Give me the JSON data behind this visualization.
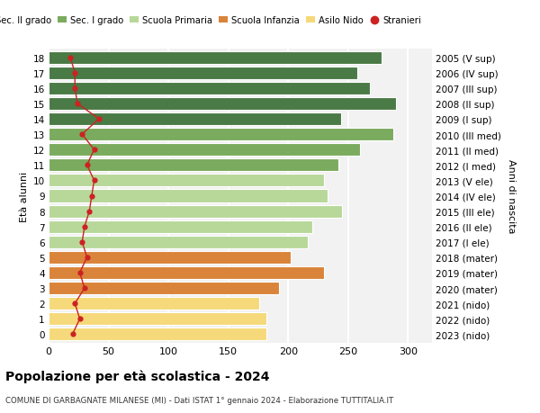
{
  "ages": [
    18,
    17,
    16,
    15,
    14,
    13,
    12,
    11,
    10,
    9,
    8,
    7,
    6,
    5,
    4,
    3,
    2,
    1,
    0
  ],
  "right_labels_by_age": {
    "18": "2005 (V sup)",
    "17": "2006 (IV sup)",
    "16": "2007 (III sup)",
    "15": "2008 (II sup)",
    "14": "2009 (I sup)",
    "13": "2010 (III med)",
    "12": "2011 (II med)",
    "11": "2012 (I med)",
    "10": "2013 (V ele)",
    "9": "2014 (IV ele)",
    "8": "2015 (III ele)",
    "7": "2016 (II ele)",
    "6": "2017 (I ele)",
    "5": "2018 (mater)",
    "4": "2019 (mater)",
    "3": "2020 (mater)",
    "2": "2021 (nido)",
    "1": "2022 (nido)",
    "0": "2023 (nido)"
  },
  "bar_values": [
    278,
    258,
    268,
    290,
    244,
    288,
    260,
    242,
    230,
    233,
    245,
    220,
    216,
    202,
    230,
    192,
    176,
    182,
    182
  ],
  "bar_colors": [
    "#4a7a45",
    "#4a7a45",
    "#4a7a45",
    "#4a7a45",
    "#4a7a45",
    "#7aab5e",
    "#7aab5e",
    "#7aab5e",
    "#b8d89a",
    "#b8d89a",
    "#b8d89a",
    "#b8d89a",
    "#b8d89a",
    "#d9843a",
    "#d9843a",
    "#d9843a",
    "#f5d97a",
    "#f5d97a",
    "#f5d97a"
  ],
  "stranieri_values": [
    18,
    22,
    22,
    24,
    42,
    28,
    38,
    32,
    38,
    36,
    34,
    30,
    28,
    32,
    26,
    30,
    22,
    26,
    20
  ],
  "legend_labels": [
    "Sec. II grado",
    "Sec. I grado",
    "Scuola Primaria",
    "Scuola Infanzia",
    "Asilo Nido",
    "Stranieri"
  ],
  "legend_colors": [
    "#4a7a45",
    "#7aab5e",
    "#b8d89a",
    "#d9843a",
    "#f5d97a",
    "#cc2222"
  ],
  "title": "Popolazione per età scolastica - 2024",
  "subtitle": "COMUNE DI GARBAGNATE MILANESE (MI) - Dati ISTAT 1° gennaio 2024 - Elaborazione TUTTITALIA.IT",
  "ylabel_left": "Età alunni",
  "ylabel_right": "Anni di nascita",
  "xlim": [
    0,
    320
  ],
  "xticks": [
    0,
    50,
    100,
    150,
    200,
    250,
    300
  ],
  "bg_color": "#ffffff",
  "plot_bg_color": "#f2f2f2",
  "grid_color": "#ffffff",
  "bar_height": 0.82
}
